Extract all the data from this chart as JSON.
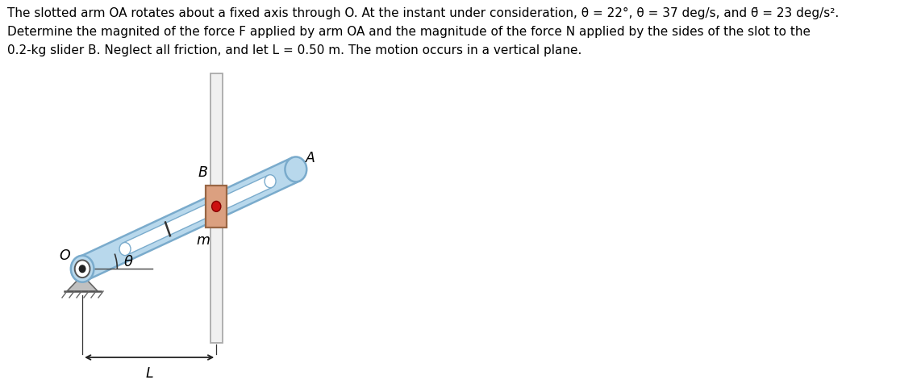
{
  "text_line1": "The slotted arm OA rotates about a fixed axis through O. At the instant under consideration, θ = 22°, θ̇ = 37 deg/s, and θ̈ = 23 deg/s².",
  "text_line2": "Determine the magnited of the force F applied by arm OA and the magnitude of the force N applied by the sides of the slot to the",
  "text_line3": "0.2-kg slider B. Neglect all friction, and let L = 0.50 m. The motion occurs in a vertical plane.",
  "theta_deg": 22,
  "arm_color": "#b8d8ec",
  "arm_edge_color": "#7aabcc",
  "slot_color": "#ffffff",
  "slider_color": "#dba080",
  "slider_dot_color": "#cc1111",
  "support_color": "#c0c0c0",
  "ground_hatch_color": "#707070",
  "vertical_bar_color": "#f0f0f0",
  "vertical_bar_edge": "#aaaaaa",
  "background": "#ffffff",
  "text_color": "#000000",
  "label_fontsize": 11.0,
  "annotation_fontsize": 12.5
}
